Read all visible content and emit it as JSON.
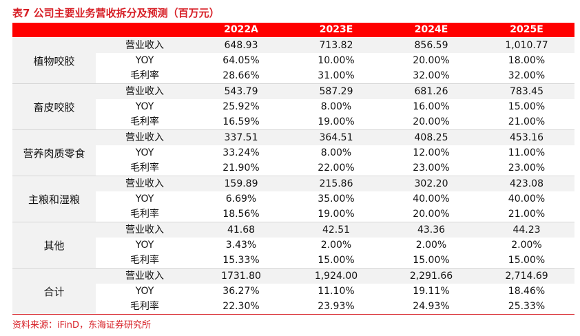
{
  "caption": "表7  公司主要业务营收拆分及预测（百万元）",
  "header": {
    "corner": "",
    "metric": "",
    "years": [
      "2022A",
      "2023E",
      "2024E",
      "2025E"
    ]
  },
  "metrics": [
    "营业收入",
    "YOY",
    "毛利率"
  ],
  "groups": [
    {
      "name": "植物咬胶",
      "rows": [
        [
          "648.93",
          "713.82",
          "856.59",
          "1,010.77"
        ],
        [
          "64.05%",
          "10.00%",
          "20.00%",
          "18.00%"
        ],
        [
          "28.66%",
          "31.00%",
          "32.00%",
          "32.00%"
        ]
      ]
    },
    {
      "name": "畜皮咬胶",
      "rows": [
        [
          "543.79",
          "587.29",
          "681.26",
          "783.45"
        ],
        [
          "25.92%",
          "8.00%",
          "16.00%",
          "15.00%"
        ],
        [
          "16.59%",
          "19.00%",
          "20.00%",
          "21.00%"
        ]
      ]
    },
    {
      "name": "营养肉质零食",
      "rows": [
        [
          "337.51",
          "364.51",
          "408.25",
          "453.16"
        ],
        [
          "33.24%",
          "8.00%",
          "12.00%",
          "11.00%"
        ],
        [
          "21.90%",
          "22.00%",
          "23.00%",
          "23.00%"
        ]
      ]
    },
    {
      "name": "主粮和湿粮",
      "rows": [
        [
          "159.89",
          "215.86",
          "302.20",
          "423.08"
        ],
        [
          "6.69%",
          "35.00%",
          "40.00%",
          "40.00%"
        ],
        [
          "18.56%",
          "19.00%",
          "20.00%",
          "21.00%"
        ]
      ]
    },
    {
      "name": "其他",
      "rows": [
        [
          "41.68",
          "42.51",
          "43.36",
          "44.23"
        ],
        [
          "3.43%",
          "2.00%",
          "2.00%",
          "2.00%"
        ],
        [
          "15.33%",
          "15.00%",
          "15.00%",
          "15.00%"
        ]
      ]
    },
    {
      "name": "合计",
      "rows": [
        [
          "1731.80",
          "1,924.00",
          "2,291.66",
          "2,714.69"
        ],
        [
          "36.27%",
          "11.10%",
          "19.11%",
          "18.46%"
        ],
        [
          "22.30%",
          "23.93%",
          "24.93%",
          "25.33%"
        ]
      ]
    }
  ],
  "source": "资料来源：iFinD，东海证券研究所"
}
